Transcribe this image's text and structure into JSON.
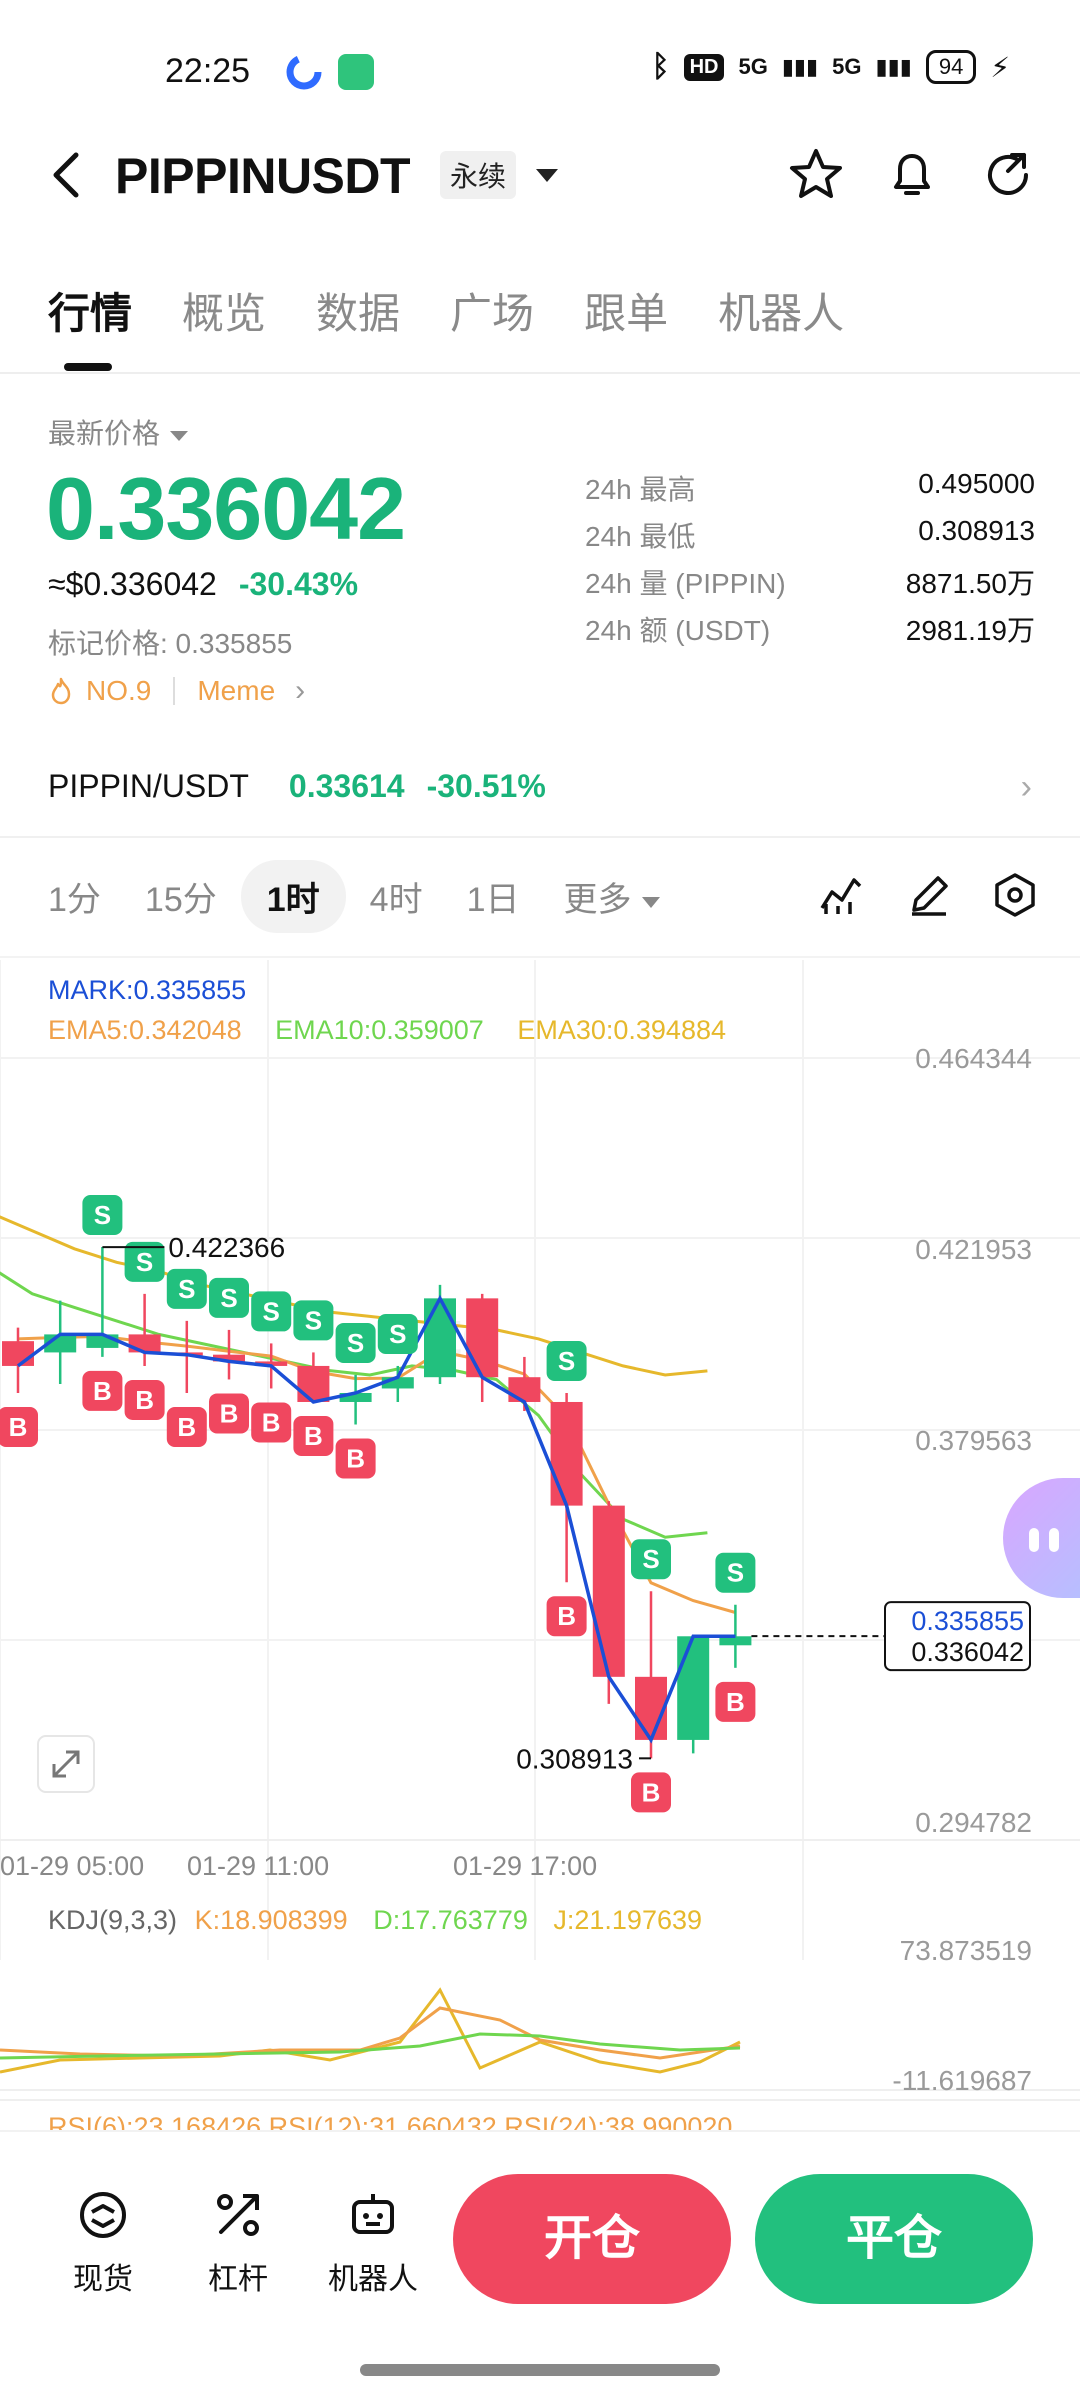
{
  "status_bar": {
    "time": "22:25",
    "network_hd": "HD",
    "network_5g_1": "5G",
    "network_5g_2": "5G",
    "battery": "94"
  },
  "header": {
    "symbol": "PIPPINUSDT",
    "contract_type": "永续",
    "icons": [
      "back-icon",
      "star-icon",
      "bell-icon",
      "share-icon"
    ]
  },
  "tabs": [
    {
      "label": "行情",
      "active": true
    },
    {
      "label": "概览",
      "active": false
    },
    {
      "label": "数据",
      "active": false
    },
    {
      "label": "广场",
      "active": false
    },
    {
      "label": "跟单",
      "active": false
    },
    {
      "label": "机器人",
      "active": false
    }
  ],
  "price": {
    "latest_label": "最新价格",
    "last": "0.336042",
    "usd": "≈$0.336042",
    "change_pct": "-30.43%",
    "mark_label": "标记价格: 0.335855",
    "rank": "NO.9",
    "category": "Meme",
    "accent_green": "#1ab37a",
    "accent_red": "#f0475f"
  },
  "stats": [
    {
      "label": "24h  最高",
      "value": "0.495000"
    },
    {
      "label": "24h  最低",
      "value": "0.308913"
    },
    {
      "label": "24h  量 (PIPPIN)",
      "value": "8871.50万"
    },
    {
      "label": "24h  额 (USDT)",
      "value": "2981.19万"
    }
  ],
  "spot": {
    "pair": "PIPPIN/USDT",
    "price": "0.33614",
    "change": "-30.51%"
  },
  "timeframes": [
    {
      "label": "1分",
      "active": false
    },
    {
      "label": "15分",
      "active": false
    },
    {
      "label": "1时",
      "active": true
    },
    {
      "label": "4时",
      "active": false
    },
    {
      "label": "1日",
      "active": false
    },
    {
      "label": "更多",
      "active": false
    }
  ],
  "chart_data": {
    "type": "candlestick",
    "indicators": {
      "mark": "MARK:0.335855",
      "ema5": "EMA5:0.342048",
      "ema10": "EMA10:0.359007",
      "ema30": "EMA30:0.394884"
    },
    "y_ticks": [
      "0.464344",
      "0.421953",
      "0.379563",
      "0.294782"
    ],
    "x_ticks": [
      "01-29 05:00",
      "01-29 11:00",
      "01-29 17:00"
    ],
    "high_label": "0.422366",
    "low_label": "0.308913",
    "mark_tag": "0.335855",
    "last_tag": "0.336042",
    "candles": [
      {
        "o": 0.4015,
        "h": 0.4045,
        "l": 0.39,
        "c": 0.396
      },
      {
        "o": 0.399,
        "h": 0.4105,
        "l": 0.392,
        "c": 0.403
      },
      {
        "o": 0.4,
        "h": 0.4224,
        "l": 0.398,
        "c": 0.403
      },
      {
        "o": 0.403,
        "h": 0.412,
        "l": 0.396,
        "c": 0.399
      },
      {
        "o": 0.399,
        "h": 0.406,
        "l": 0.39,
        "c": 0.3985
      },
      {
        "o": 0.3985,
        "h": 0.404,
        "l": 0.393,
        "c": 0.397
      },
      {
        "o": 0.397,
        "h": 0.401,
        "l": 0.391,
        "c": 0.396
      },
      {
        "o": 0.396,
        "h": 0.399,
        "l": 0.388,
        "c": 0.388
      },
      {
        "o": 0.388,
        "h": 0.394,
        "l": 0.383,
        "c": 0.39
      },
      {
        "o": 0.391,
        "h": 0.396,
        "l": 0.388,
        "c": 0.3935
      },
      {
        "o": 0.3935,
        "h": 0.414,
        "l": 0.392,
        "c": 0.411
      },
      {
        "o": 0.411,
        "h": 0.412,
        "l": 0.388,
        "c": 0.3935
      },
      {
        "o": 0.3935,
        "h": 0.398,
        "l": 0.386,
        "c": 0.388
      },
      {
        "o": 0.388,
        "h": 0.39,
        "l": 0.348,
        "c": 0.365
      },
      {
        "o": 0.365,
        "h": 0.366,
        "l": 0.321,
        "c": 0.327
      },
      {
        "o": 0.327,
        "h": 0.346,
        "l": 0.3089,
        "c": 0.313
      },
      {
        "o": 0.313,
        "h": 0.336,
        "l": 0.31,
        "c": 0.336
      },
      {
        "o": 0.334,
        "h": 0.343,
        "l": 0.329,
        "c": 0.336
      }
    ],
    "signals": [
      {
        "i": 0,
        "type": "B"
      },
      {
        "i": 2,
        "type": "S"
      },
      {
        "i": 2,
        "type": "B"
      },
      {
        "i": 3,
        "type": "S"
      },
      {
        "i": 3,
        "type": "B"
      },
      {
        "i": 4,
        "type": "S"
      },
      {
        "i": 4,
        "type": "B"
      },
      {
        "i": 5,
        "type": "S"
      },
      {
        "i": 5,
        "type": "B"
      },
      {
        "i": 6,
        "type": "S"
      },
      {
        "i": 6,
        "type": "B"
      },
      {
        "i": 7,
        "type": "S"
      },
      {
        "i": 7,
        "type": "B"
      },
      {
        "i": 8,
        "type": "S"
      },
      {
        "i": 8,
        "type": "B"
      },
      {
        "i": 9,
        "type": "S"
      },
      {
        "i": 13,
        "type": "S"
      },
      {
        "i": 13,
        "type": "B"
      },
      {
        "i": 15,
        "type": "S"
      },
      {
        "i": 15,
        "type": "B"
      },
      {
        "i": 17,
        "type": "S"
      },
      {
        "i": 17,
        "type": "B"
      }
    ],
    "colors": {
      "up": "#22c07e",
      "down": "#f0475f",
      "mark": "#1b4fd6",
      "ema5": "#f0a14a",
      "ema10": "#6fd64f",
      "ema30": "#e6b82c"
    }
  },
  "kdj": {
    "label": "KDJ(9,3,3)",
    "k": "K:18.908399",
    "d": "D:17.763779",
    "j": "J:21.197639",
    "y_top": "73.873519",
    "y_bottom": "-11.619687"
  },
  "rsi": {
    "label": "RSI(6):23.168426  RSI(12):31.660432  RSI(24):38.990020"
  },
  "bottom_bar": {
    "spot": "现货",
    "leverage": "杠杆",
    "bot": "机器人",
    "open": "开仓",
    "close": "平仓"
  }
}
